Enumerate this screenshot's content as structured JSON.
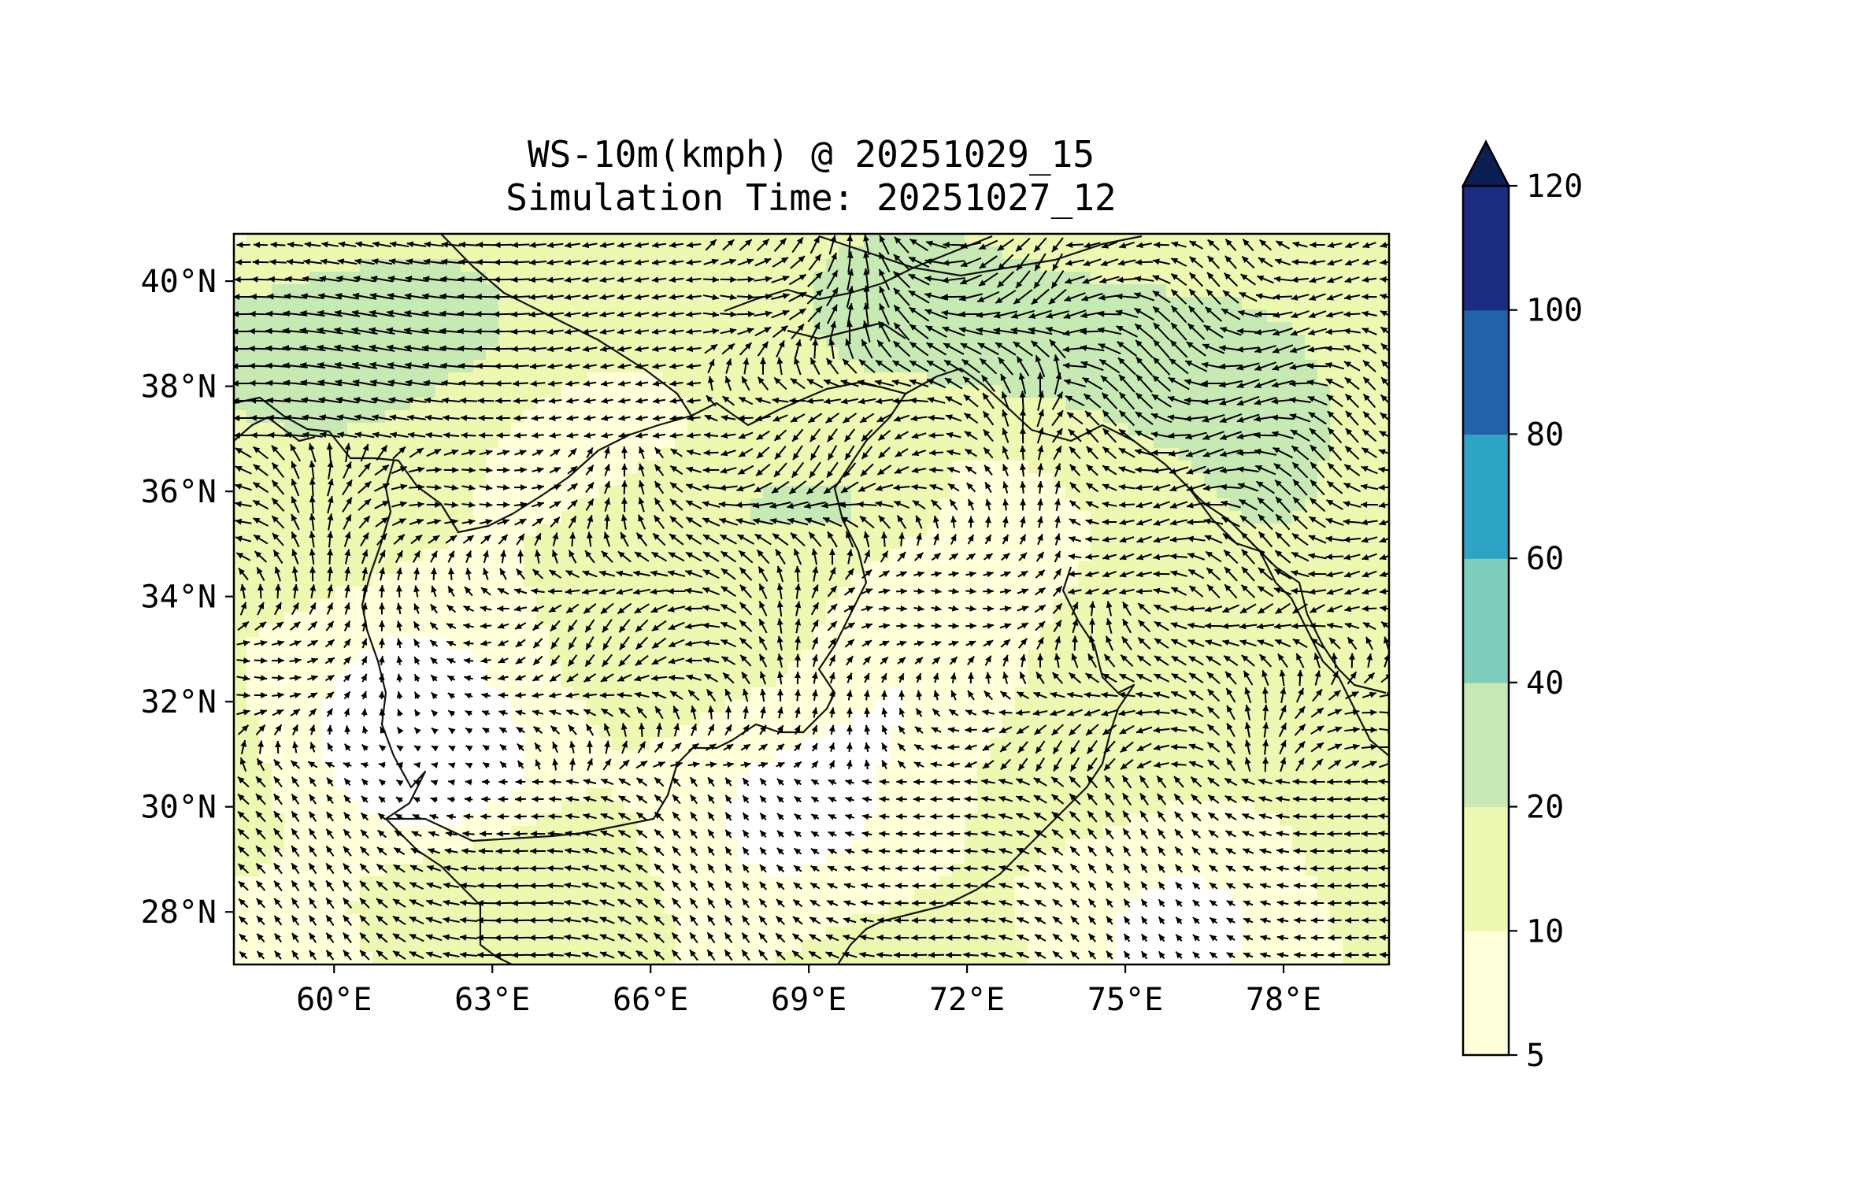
{
  "title": {
    "line1": "WS-10m(kmph) @ 20251029_15",
    "line2": "Simulation Time: 20251027_12"
  },
  "map": {
    "lon_range": [
      58.1,
      80.0
    ],
    "lat_range": [
      27.0,
      40.9
    ],
    "lat_ticks": [
      {
        "value": 28,
        "label": "28°N"
      },
      {
        "value": 30,
        "label": "30°N"
      },
      {
        "value": 32,
        "label": "32°N"
      },
      {
        "value": 34,
        "label": "34°N"
      },
      {
        "value": 36,
        "label": "36°N"
      },
      {
        "value": 38,
        "label": "38°N"
      },
      {
        "value": 40,
        "label": "40°N"
      }
    ],
    "lon_ticks": [
      {
        "value": 60,
        "label": "60°E"
      },
      {
        "value": 63,
        "label": "63°E"
      },
      {
        "value": 66,
        "label": "66°E"
      },
      {
        "value": 69,
        "label": "69°E"
      },
      {
        "value": 72,
        "label": "72°E"
      },
      {
        "value": 75,
        "label": "75°E"
      },
      {
        "value": 78,
        "label": "78°E"
      }
    ],
    "field": "wind speed at 10 m (kmph), filled contours with wind vectors"
  },
  "colorbar": {
    "levels": [
      {
        "value": 5,
        "label": "5"
      },
      {
        "value": 10,
        "label": "10"
      },
      {
        "value": 20,
        "label": "20"
      },
      {
        "value": 40,
        "label": "40"
      },
      {
        "value": 60,
        "label": "60"
      },
      {
        "value": 80,
        "label": "80"
      },
      {
        "value": 100,
        "label": "100"
      },
      {
        "value": 120,
        "label": "120"
      }
    ],
    "colors": [
      "#ffffd9",
      "#edf8b1",
      "#c7e9b4",
      "#7fcdbb",
      "#2ea4c4",
      "#2262ac",
      "#1b2d83"
    ],
    "extend_color": "#0c1f55",
    "extend": "max"
  }
}
